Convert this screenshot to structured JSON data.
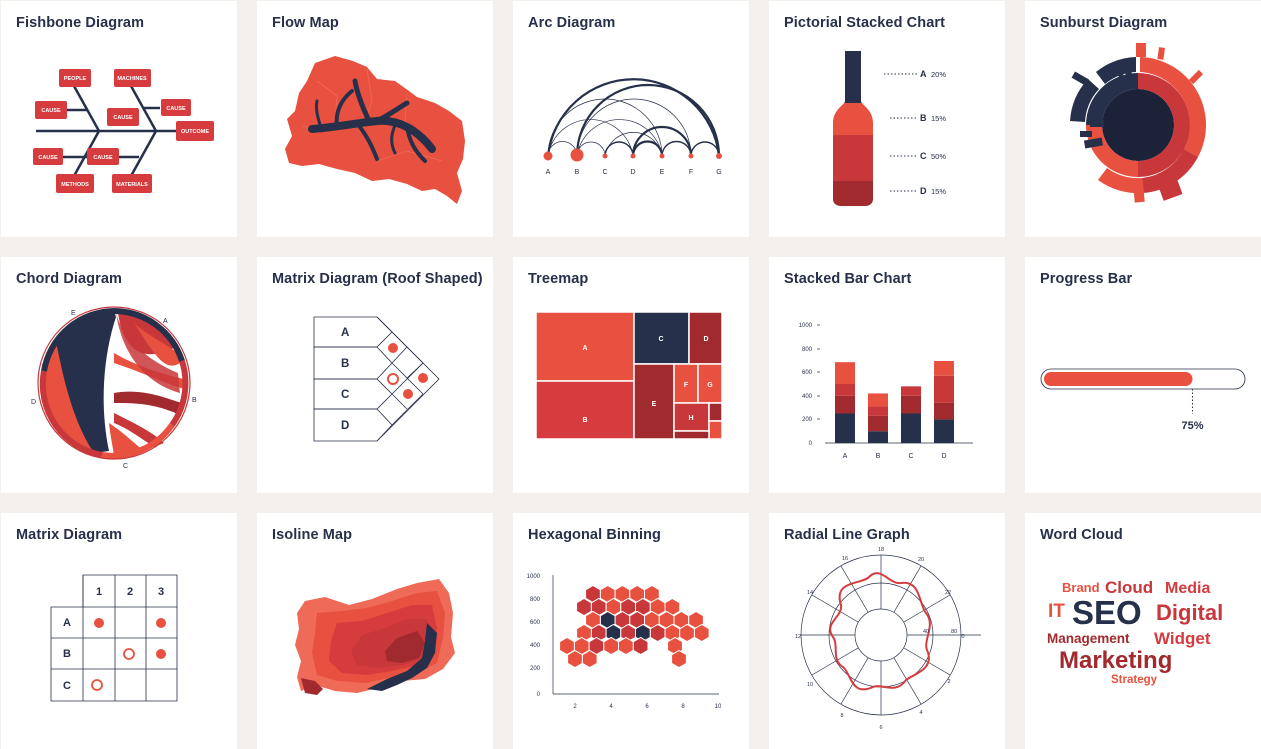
{
  "colors": {
    "navy": "#27304a",
    "red": "#e8503f",
    "crimson": "#c8373a",
    "maroon": "#a12a2e",
    "dark_maroon": "#8c2328",
    "background": "#f4f0eb"
  },
  "cards": [
    {
      "title": "Fishbone Diagram"
    },
    {
      "title": "Flow Map"
    },
    {
      "title": "Arc Diagram"
    },
    {
      "title": "Pictorial Stacked Chart"
    },
    {
      "title": "Sunburst Diagram"
    },
    {
      "title": "Chord Diagram"
    },
    {
      "title": "Matrix Diagram (Roof Shaped)"
    },
    {
      "title": "Treemap"
    },
    {
      "title": "Stacked Bar Chart"
    },
    {
      "title": "Progress Bar"
    },
    {
      "title": "Matrix Diagram"
    },
    {
      "title": "Isoline Map"
    },
    {
      "title": "Hexagonal Binning"
    },
    {
      "title": "Radial Line Graph"
    },
    {
      "title": "Word Cloud"
    }
  ],
  "fishbone": {
    "labels": [
      "PEOPLE",
      "MACHINES",
      "CAUSE",
      "CAUSE",
      "CAUSE",
      "OUTCOME",
      "CAUSE",
      "CAUSE",
      "METHODS",
      "MATERIALS"
    ]
  },
  "arc": {
    "nodes": [
      "A",
      "B",
      "C",
      "D",
      "E",
      "F",
      "G"
    ]
  },
  "pictorial": {
    "labels": [
      {
        "letter": "A",
        "value": "20%"
      },
      {
        "letter": "B",
        "value": "15%"
      },
      {
        "letter": "C",
        "value": "50%"
      },
      {
        "letter": "D",
        "value": "15%"
      }
    ]
  },
  "chord": {
    "labels": [
      "E",
      "A",
      "B",
      "C",
      "D"
    ]
  },
  "roof_matrix": {
    "rows": [
      "A",
      "B",
      "C",
      "D"
    ]
  },
  "treemap": {
    "labels": [
      "A",
      "B",
      "C",
      "D",
      "E",
      "F",
      "G",
      "H"
    ]
  },
  "stacked_bar": {
    "y_ticks": [
      "1000",
      "800",
      "600",
      "400",
      "200",
      "0"
    ],
    "categories": [
      "A",
      "B",
      "C",
      "D"
    ],
    "segments": [
      [
        250,
        100,
        250,
        200
      ],
      [
        150,
        130,
        150,
        140
      ],
      [
        100,
        80,
        80,
        230
      ],
      [
        185,
        110,
        0,
        125
      ]
    ]
  },
  "progress": {
    "value": 0.75,
    "label": "75%"
  },
  "matrix": {
    "cols": [
      "1",
      "2",
      "3"
    ],
    "rows": [
      "A",
      "B",
      "C"
    ]
  },
  "hexbin": {
    "y_ticks": [
      "1000",
      "800",
      "600",
      "400",
      "200",
      "0"
    ],
    "x_ticks": [
      "2",
      "4",
      "6",
      "8",
      "10"
    ]
  },
  "radial": {
    "hour_labels": [
      "16",
      "18",
      "20",
      "22",
      "0",
      "2",
      "4",
      "6",
      "8",
      "10",
      "12",
      "14"
    ],
    "radius_labels": [
      "40",
      "80"
    ]
  },
  "word_cloud": {
    "words": [
      "Brand",
      "Cloud",
      "Media",
      "IT",
      "SEO",
      "Digital",
      "Management",
      "Widget",
      "Marketing",
      "Strategy"
    ]
  }
}
